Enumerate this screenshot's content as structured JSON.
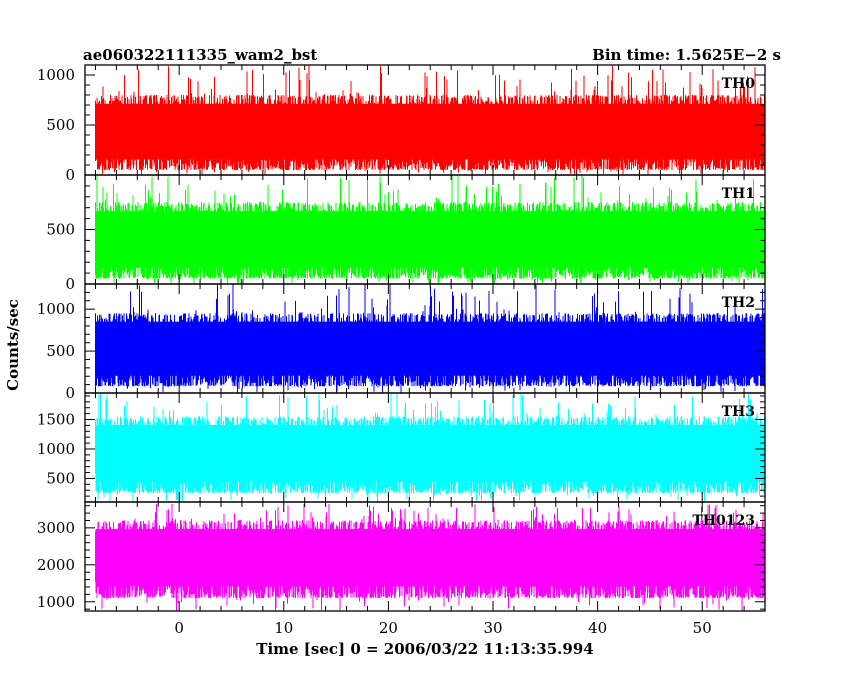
{
  "header": {
    "title": "ae060322111335_wam2_bst",
    "bin_time": "Bin time: 1.5625E−2 s"
  },
  "chart_data": {
    "type": "line",
    "subtype": "stacked light curves",
    "xlabel": "Time [sec] 0 = 2006/03/22 11:13:35.994",
    "ylabel": "Counts/sec",
    "xlim": [
      -9,
      56
    ],
    "x_ticks": [
      0,
      10,
      20,
      30,
      40,
      50
    ],
    "data_x_range": [
      -8,
      56
    ],
    "bin_time_s": 0.015625,
    "grid": false,
    "legend": "none",
    "panels": [
      {
        "name": "TH0",
        "color": "#ff0000",
        "ylim": [
          0,
          1100
        ],
        "y_ticks": [
          0,
          500,
          1000
        ],
        "typical_range": [
          50,
          800
        ],
        "peak_max": 1100,
        "mean": 400
      },
      {
        "name": "TH1",
        "color": "#00ff00",
        "ylim": [
          0,
          1000
        ],
        "y_ticks": [
          0,
          500
        ],
        "typical_range": [
          50,
          750
        ],
        "peak_max": 1000,
        "mean": 380
      },
      {
        "name": "TH2",
        "color": "#0000ff",
        "ylim": [
          0,
          1300
        ],
        "y_ticks": [
          0,
          500,
          1000
        ],
        "typical_range": [
          80,
          950
        ],
        "peak_max": 1300,
        "mean": 500
      },
      {
        "name": "TH3",
        "color": "#00ffff",
        "ylim": [
          100,
          1950
        ],
        "y_ticks": [
          500,
          1000,
          1500
        ],
        "typical_range": [
          250,
          1550
        ],
        "peak_max": 1950,
        "mean": 900
      },
      {
        "name": "TH0123",
        "color": "#ff00ff",
        "ylim": [
          750,
          3700
        ],
        "y_ticks": [
          1000,
          2000,
          3000
        ],
        "typical_range": [
          1100,
          3200
        ],
        "peak_max": 3650,
        "mean": 2150
      }
    ]
  }
}
